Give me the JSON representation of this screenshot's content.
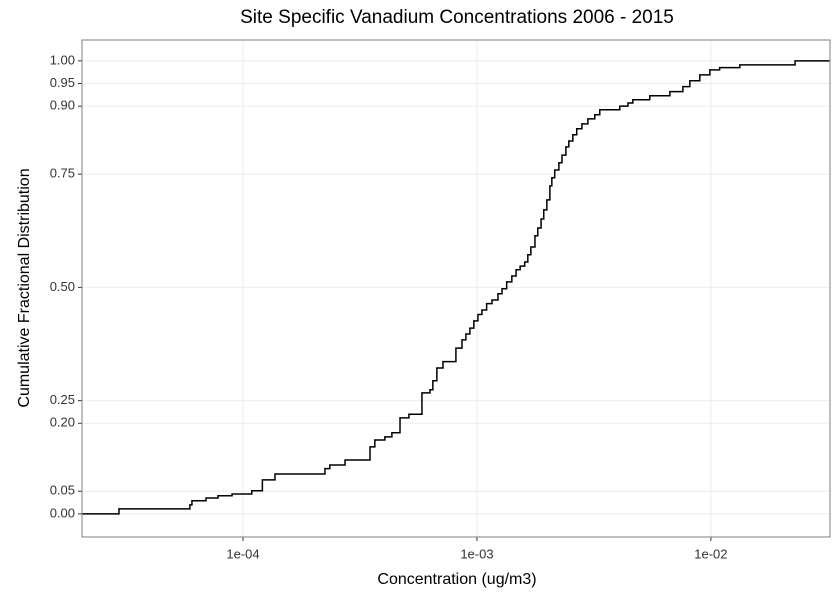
{
  "chart_data": {
    "type": "step",
    "title": "Site Specific Vanadium Concentrations 2006 - 2015",
    "x_label": "Concentration (ug/m3)",
    "y_label": "Cumulative Fractional Distribution",
    "x_log": true,
    "grid": true,
    "color": "#000000",
    "x": [
      2.95e-05,
      5.93e-05,
      6.05e-05,
      6.95e-05,
      7.82e-05,
      8.98e-05,
      0.000109,
      0.000121,
      0.000137,
      0.000224,
      0.000235,
      0.000273,
      0.000349,
      0.000366,
      0.000404,
      0.000433,
      0.000469,
      0.000512,
      0.000582,
      0.00063,
      0.000648,
      0.000674,
      0.000716,
      0.000813,
      0.000863,
      0.000897,
      0.000933,
      0.00097,
      0.00101,
      0.00105,
      0.0011,
      0.00116,
      0.00123,
      0.00128,
      0.00134,
      0.00141,
      0.00147,
      0.00153,
      0.0016,
      0.00165,
      0.0017,
      0.00177,
      0.00182,
      0.00188,
      0.00193,
      0.00199,
      0.00205,
      0.00209,
      0.00215,
      0.00224,
      0.00231,
      0.0024,
      0.00247,
      0.00257,
      0.00267,
      0.00281,
      0.00298,
      0.00319,
      0.00335,
      0.00408,
      0.00442,
      0.00464,
      0.00548,
      0.00668,
      0.00759,
      0.00813,
      0.00897,
      0.0099,
      0.0109,
      0.0133,
      0.0229
    ],
    "values": [
      0.011,
      0.02,
      0.029,
      0.035,
      0.04,
      0.044,
      0.051,
      0.075,
      0.088,
      0.1,
      0.108,
      0.119,
      0.148,
      0.163,
      0.17,
      0.179,
      0.212,
      0.22,
      0.267,
      0.274,
      0.294,
      0.322,
      0.336,
      0.366,
      0.384,
      0.397,
      0.41,
      0.426,
      0.44,
      0.45,
      0.464,
      0.472,
      0.486,
      0.497,
      0.512,
      0.525,
      0.539,
      0.547,
      0.556,
      0.572,
      0.589,
      0.614,
      0.631,
      0.651,
      0.671,
      0.693,
      0.724,
      0.742,
      0.759,
      0.775,
      0.792,
      0.81,
      0.823,
      0.837,
      0.85,
      0.861,
      0.872,
      0.881,
      0.892,
      0.9,
      0.907,
      0.914,
      0.923,
      0.932,
      0.943,
      0.956,
      0.969,
      0.98,
      0.985,
      0.991,
      1.0
    ],
    "xlim": [
      2.05e-05,
      0.0323
    ],
    "ylim": [
      -0.051,
      1.046
    ],
    "xticks": [
      {
        "value": 0.0001,
        "label": "1e-04"
      },
      {
        "value": 0.001,
        "label": "1e-03"
      },
      {
        "value": 0.01,
        "label": "1e-02"
      }
    ],
    "yticks": [
      {
        "value": 0,
        "label": "0.00"
      },
      {
        "value": 0.05,
        "label": "0.05"
      },
      {
        "value": 0.2,
        "label": "0.20"
      },
      {
        "value": 0.25,
        "label": "0.25"
      },
      {
        "value": 0.5,
        "label": "0.50"
      },
      {
        "value": 0.75,
        "label": "0.75"
      },
      {
        "value": 0.9,
        "label": "0.90"
      },
      {
        "value": 0.95,
        "label": "0.95"
      },
      {
        "value": 1,
        "label": "1.00"
      }
    ]
  }
}
